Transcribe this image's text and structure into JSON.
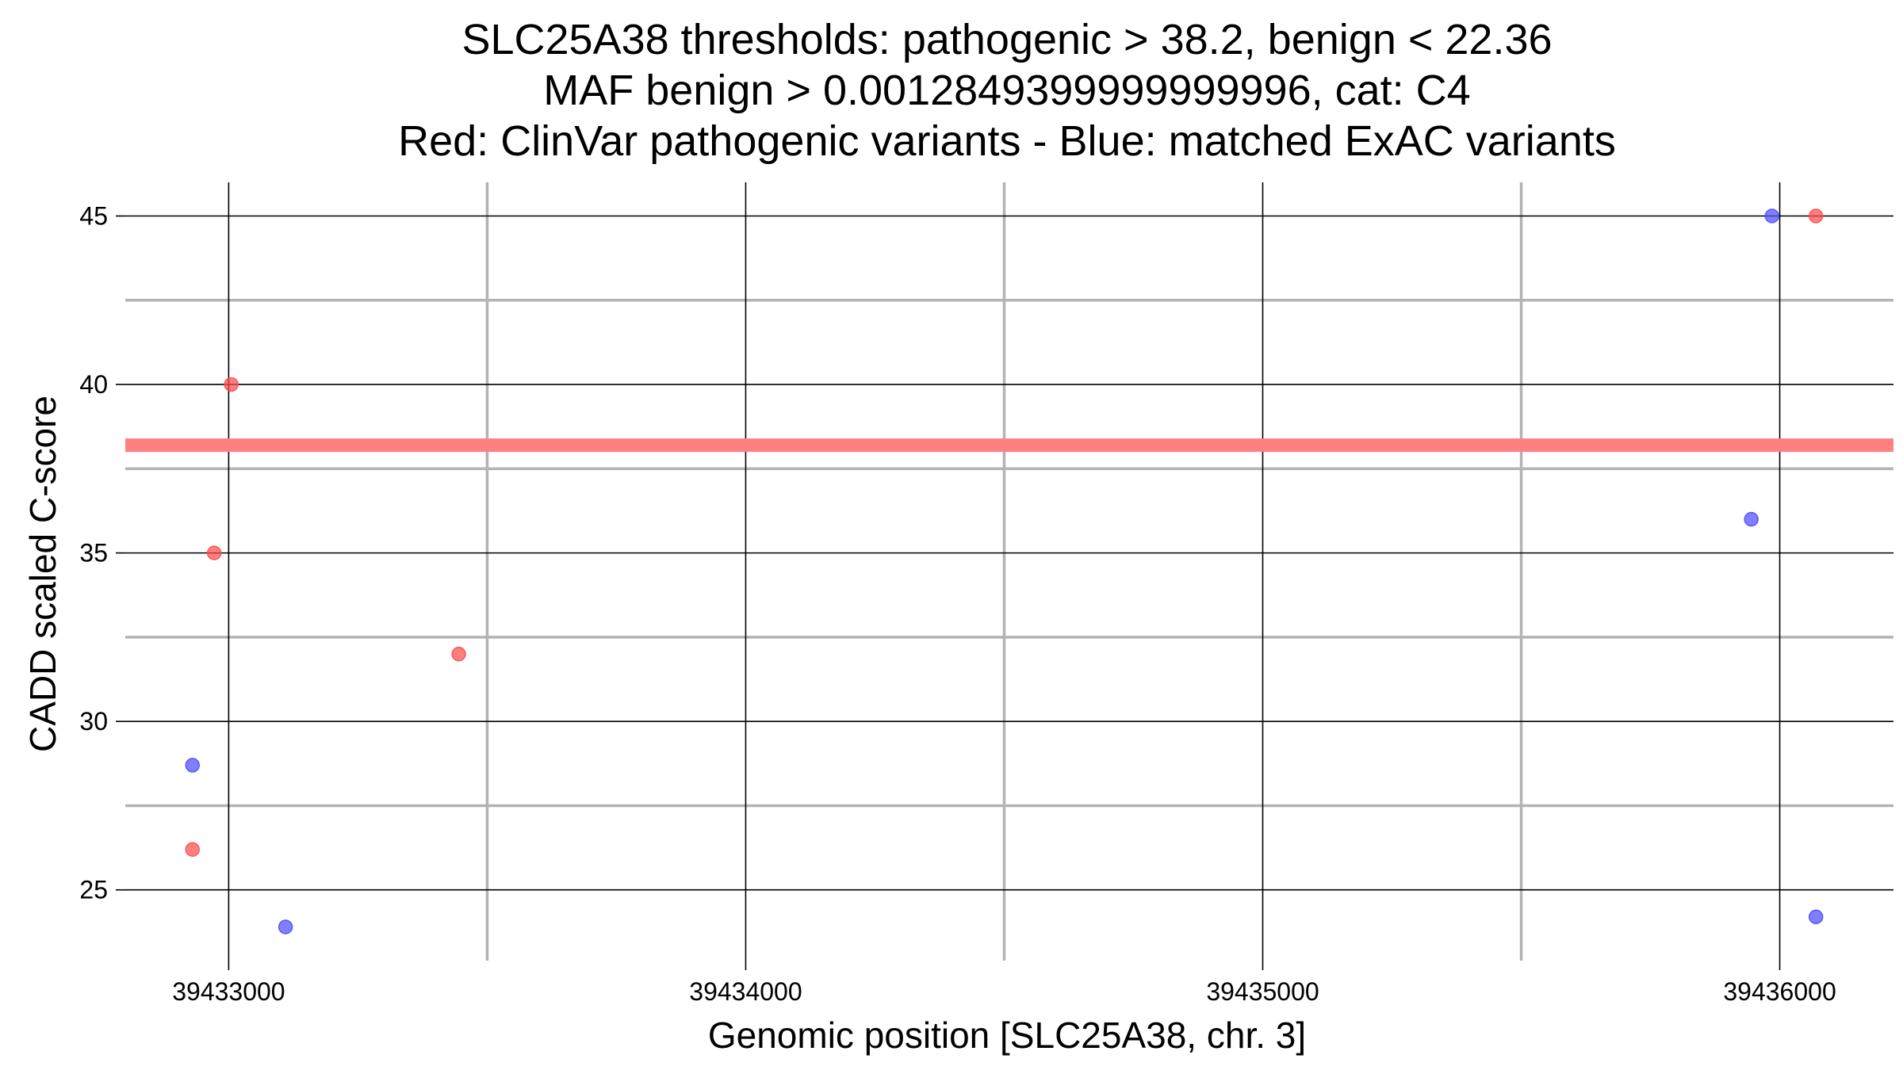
{
  "chart_data": {
    "type": "scatter",
    "title_lines": [
      "SLC25A38 thresholds: pathogenic > 38.2, benign < 22.36",
      "MAF benign > 0.0012849399999999996, cat: C4",
      "Red: ClinVar pathogenic variants - Blue: matched ExAC variants"
    ],
    "xlabel": "Genomic position [SLC25A38, chr. 3]",
    "ylabel": "CADD scaled C-score",
    "xlim": [
      39432800,
      39436220
    ],
    "ylim": [
      22.9,
      46.0
    ],
    "x_ticks": [
      39433000,
      39434000,
      39435000,
      39436000
    ],
    "x_tick_labels": [
      "39433000",
      "39434000",
      "39435000",
      "39436000"
    ],
    "x_minor_ticks": [
      39433500,
      39434500,
      39435500
    ],
    "y_ticks": [
      25,
      30,
      35,
      40,
      45
    ],
    "y_tick_labels": [
      "25",
      "30",
      "35",
      "40",
      "45"
    ],
    "y_minor_ticks": [
      27.5,
      32.5,
      37.5,
      42.5
    ],
    "threshold_line": {
      "y": 38.2,
      "color": "#ff8080"
    },
    "series": [
      {
        "color": "#ff4d4d",
        "points": [
          {
            "x": 39433005,
            "y": 40.0
          },
          {
            "x": 39432972,
            "y": 35.0
          },
          {
            "x": 39433445,
            "y": 32.0
          },
          {
            "x": 39432930,
            "y": 26.2
          },
          {
            "x": 39436070,
            "y": 45.0
          }
        ]
      },
      {
        "color": "#4d4dff",
        "points": [
          {
            "x": 39432930,
            "y": 28.7
          },
          {
            "x": 39433110,
            "y": 23.9
          },
          {
            "x": 39435985,
            "y": 45.0
          },
          {
            "x": 39435945,
            "y": 36.0
          },
          {
            "x": 39436070,
            "y": 24.2
          }
        ]
      }
    ],
    "grid": true
  }
}
